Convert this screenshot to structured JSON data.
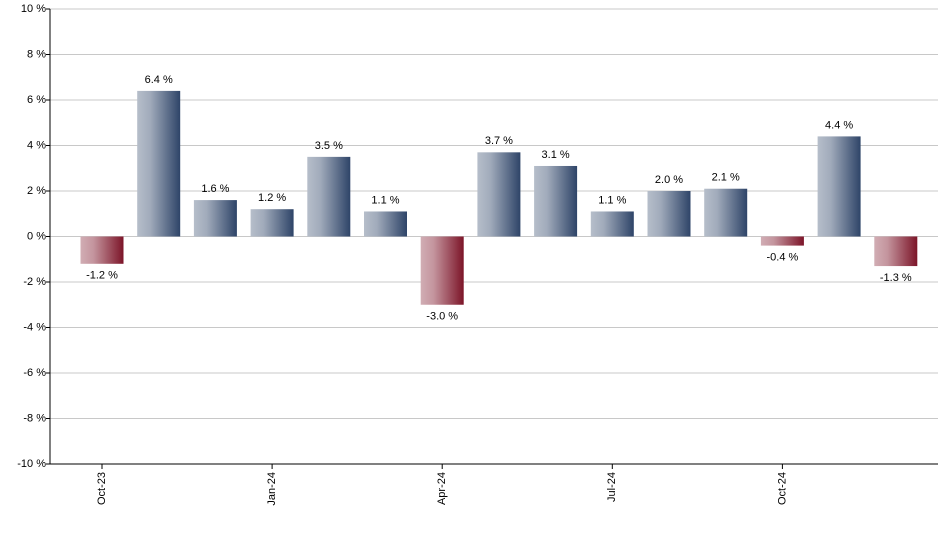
{
  "chart_data": {
    "type": "bar",
    "categories": [
      "Oct-23",
      null,
      null,
      "Jan-24",
      null,
      null,
      "Apr-24",
      null,
      null,
      "Jul-24",
      null,
      null,
      "Oct-24",
      null,
      null
    ],
    "values": [
      -1.2,
      6.4,
      1.6,
      1.2,
      3.5,
      1.1,
      -3.0,
      3.7,
      3.1,
      1.1,
      2.0,
      2.1,
      -0.4,
      4.4,
      -1.3
    ],
    "value_labels": [
      "-1.2 %",
      "6.4 %",
      "1.6 %",
      "1.2 %",
      "3.5 %",
      "1.1 %",
      "-3.0 %",
      "3.7 %",
      "3.1 %",
      "1.1 %",
      "2.0 %",
      "2.1 %",
      "-0.4 %",
      "4.4 %",
      "-1.3 %"
    ],
    "positive_color": "#2e4468",
    "negative_color": "#7c1428",
    "ylim": [
      -10,
      10
    ],
    "yticks": [
      {
        "value": -10,
        "label": "-10 %"
      },
      {
        "value": -8,
        "label": "-8 %"
      },
      {
        "value": -6,
        "label": "-6 %"
      },
      {
        "value": -4,
        "label": "-4 %"
      },
      {
        "value": -2,
        "label": "-2 %"
      },
      {
        "value": 0,
        "label": "0 %"
      },
      {
        "value": 2,
        "label": "2 %"
      },
      {
        "value": 4,
        "label": "4 %"
      },
      {
        "value": 6,
        "label": "6 %"
      },
      {
        "value": 8,
        "label": "8 %"
      },
      {
        "value": 10,
        "label": "10 %"
      }
    ],
    "grid": true
  }
}
